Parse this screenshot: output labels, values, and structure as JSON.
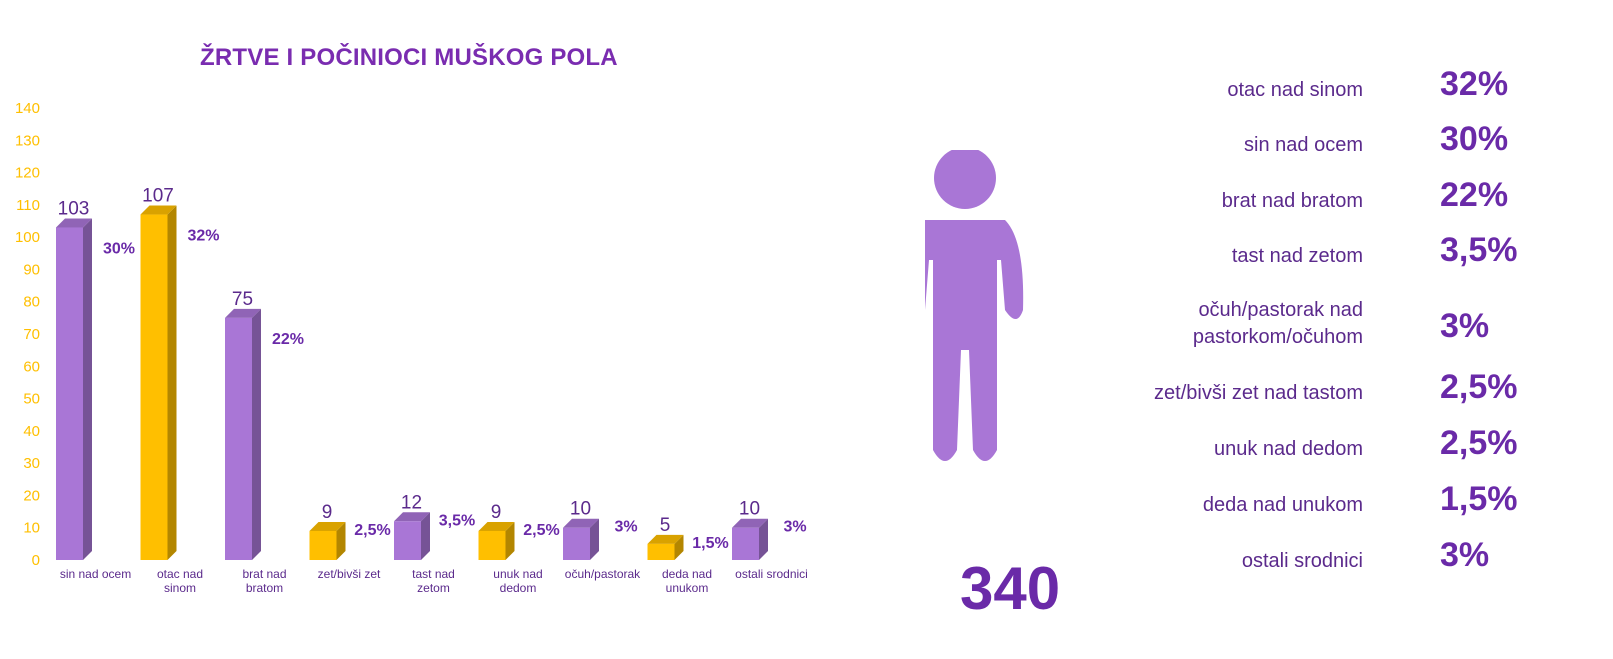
{
  "chart_data": {
    "type": "bar",
    "title": "ŽRTVE I POČINIOCI MUŠKOG POLA",
    "categories": [
      [
        "sin nad ocem"
      ],
      [
        "otac nad",
        "sinom"
      ],
      [
        "brat nad",
        "bratom"
      ],
      [
        "zet/bivši zet"
      ],
      [
        "tast nad",
        "zetom"
      ],
      [
        "unuk nad",
        "dedom"
      ],
      [
        "očuh/pastorak"
      ],
      [
        "deda nad",
        "unukom"
      ],
      [
        "ostali srodnici"
      ]
    ],
    "values": [
      103,
      107,
      75,
      9,
      12,
      9,
      10,
      5,
      10
    ],
    "value_labels": [
      "103",
      "107",
      "75",
      "9",
      "12",
      "9",
      "10",
      "5",
      "10"
    ],
    "percent_labels": [
      "30%",
      "32%",
      "22%",
      "2,5%",
      "3,5%",
      "2,5%",
      "3%",
      "1,5%",
      "3%"
    ],
    "bar_colors": [
      "#a976d6",
      "#ffbf00",
      "#a976d6",
      "#ffbf00",
      "#a976d6",
      "#ffbf00",
      "#a976d6",
      "#ffbf00",
      "#a976d6"
    ],
    "ylim": [
      0,
      140
    ],
    "yticks": [
      "0",
      "10",
      "20",
      "30",
      "40",
      "50",
      "60",
      "70",
      "80",
      "90",
      "100",
      "110",
      "120",
      "130",
      "140"
    ],
    "ytick_color": "#ffbf00",
    "grid": false
  },
  "legend": [
    {
      "label": "otac nad sinom",
      "value": "32%"
    },
    {
      "label": "sin nad ocem",
      "value": "30%"
    },
    {
      "label": "brat nad bratom",
      "value": "22%"
    },
    {
      "label": "tast nad zetom",
      "value": "3,5%"
    },
    {
      "label": "očuh/pastorak nad pastorkom/očuhom",
      "value": "3%"
    },
    {
      "label": "zet/bivši zet nad tastom",
      "value": "2,5%"
    },
    {
      "label": "unuk nad dedom",
      "value": "2,5%"
    },
    {
      "label": "deda nad unukom",
      "value": "1,5%"
    },
    {
      "label": "ostali srodnici",
      "value": "3%"
    }
  ],
  "total": "340",
  "colors": {
    "purple": "#a976d6",
    "gold": "#ffbf00",
    "text_purple": "#6a2aa8"
  }
}
